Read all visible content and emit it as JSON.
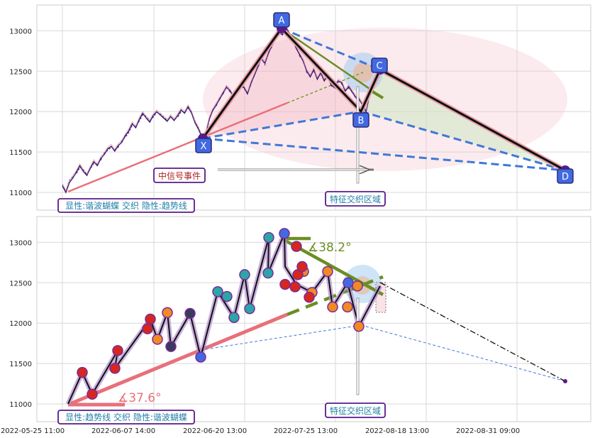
{
  "chart_data": [
    {
      "type": "line",
      "panel": "top",
      "ylim": [
        10780,
        13320
      ],
      "yticks": [
        11000,
        11500,
        12000,
        12500,
        13000
      ],
      "series": [
        {
          "values": [
            11080,
            11000,
            11120,
            11180,
            11250,
            11330,
            11260,
            11210,
            11300,
            11380,
            11330,
            11420,
            11470,
            11540,
            11570,
            11510,
            11580,
            11620,
            11700,
            11760,
            11850,
            11800,
            11900,
            11980,
            11920,
            11870,
            11950,
            12000,
            11960,
            11920,
            11880,
            11940,
            11890,
            11950,
            12020,
            11980,
            12060,
            11980,
            11860,
            11780,
            11680,
            11720,
            11900,
            12010,
            12080,
            12150,
            12230,
            12300,
            12260,
            12180,
            12250,
            12330,
            12300,
            12220,
            12350,
            12450,
            12560,
            12650,
            12600,
            12720,
            12820,
            12900,
            12980,
            12950,
            13050,
            12960,
            12880,
            12780,
            12700,
            12620,
            12500,
            12430,
            12520,
            12400,
            12480,
            12380,
            12450,
            12320,
            12300,
            12380,
            12360,
            12250,
            12310,
            12240,
            12180,
            12150,
            12080,
            12000,
            12210,
            12300,
            12380,
            12460
          ]
        },
        {
          "values": [
            11100,
            11020,
            11150,
            11200,
            11230,
            11310,
            11280,
            11220,
            11290,
            11360,
            11350,
            11400,
            11490,
            11520,
            11560,
            11530,
            11560,
            11640,
            11680,
            11740,
            11830,
            11820,
            11880,
            11960,
            11940,
            11890,
            11930,
            11990,
            11970,
            11930,
            11900,
            11920,
            11910,
            11930,
            12000,
            12000,
            12040,
            12000,
            11880,
            11800,
            11700,
            11700,
            11880,
            12030,
            12060,
            12170,
            12210,
            12320,
            12240,
            12200,
            12230,
            12350,
            12280,
            12240,
            12330,
            12470,
            12540,
            12670,
            12580,
            12740,
            12800,
            12920,
            12960,
            12970,
            13030,
            12980,
            12860,
            12800,
            12680,
            12640,
            12480,
            12450,
            12500,
            12420,
            12460,
            12400,
            12430,
            12340,
            12290,
            12390,
            12340,
            12270,
            12290,
            12260,
            12160,
            12170,
            12060,
            12020,
            12190,
            12320,
            12360,
            12480
          ]
        }
      ],
      "pattern_points": [
        {
          "label": "X",
          "value": 11680
        },
        {
          "label": "A",
          "value": 13000
        },
        {
          "label": "B",
          "value": 12000
        },
        {
          "label": "C",
          "value": 12470
        },
        {
          "label": "D",
          "value": 11300
        }
      ],
      "annotations": [
        "中信号事件",
        "特征交织区域",
        "显性:谐波蝴蝶 交织 隐性:趋势线"
      ]
    },
    {
      "type": "line",
      "panel": "bottom",
      "ylim": [
        10780,
        13320
      ],
      "yticks": [
        11000,
        11500,
        12000,
        12500,
        13000
      ],
      "xticks": [
        "2022-05-25 11:00",
        "2022-06-07 14:00",
        "2022-06-20 13:00",
        "2022-07-25 13:00",
        "2022-08-18 13:00",
        "2022-08-31 09:00"
      ],
      "series": [
        {
          "values": [
            11000,
            11390,
            11120,
            11660,
            11440,
            12050,
            11800,
            12130,
            11710,
            12120,
            11580,
            12390,
            12070,
            12600,
            12180,
            13060,
            12620,
            13110,
            12700,
            12480,
            12380,
            12640,
            12200,
            12500,
            11960,
            12460
          ]
        }
      ],
      "projection_end": 11300,
      "angles": [
        "∡38.2°",
        "∡37.6°"
      ],
      "annotations": [
        "特征交织区域",
        "显性:趋势线 交织 隐性:谐波蝴蝶"
      ]
    }
  ],
  "colors": {
    "black": "#111111",
    "salmon": "#e8707a",
    "blue_dash": "#3f78d8",
    "olive": "#6b8e23",
    "purple": "#5a1a8a",
    "label_fill": "#4169e1",
    "text_red": "#b22222",
    "text_teal": "#1f7fa8"
  }
}
